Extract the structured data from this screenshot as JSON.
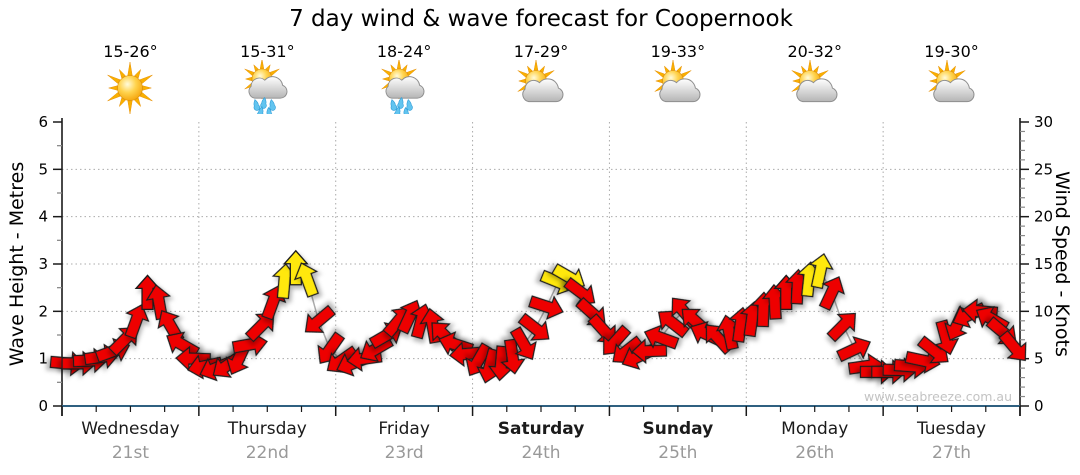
{
  "title": "7 day wind & wave forecast for Coopernook",
  "watermark": "www.seabreeze.com.au",
  "days": [
    {
      "name": "Wednesday",
      "date": "21st",
      "temp": "15-26°",
      "icon": "sun",
      "bold": false
    },
    {
      "name": "Thursday",
      "date": "22nd",
      "temp": "15-31°",
      "icon": "sun-cloud-rain",
      "bold": false
    },
    {
      "name": "Friday",
      "date": "23rd",
      "temp": "18-24°",
      "icon": "sun-cloud-rain",
      "bold": false
    },
    {
      "name": "Saturday",
      "date": "24th",
      "temp": "17-29°",
      "icon": "sun-cloud",
      "bold": true
    },
    {
      "name": "Sunday",
      "date": "25th",
      "temp": "19-33°",
      "icon": "sun-cloud",
      "bold": true
    },
    {
      "name": "Monday",
      "date": "26th",
      "temp": "20-32°",
      "icon": "sun-cloud",
      "bold": false
    },
    {
      "name": "Tuesday",
      "date": "27th",
      "temp": "19-30°",
      "icon": "sun-cloud",
      "bold": false
    }
  ],
  "chart_data": {
    "type": "wind-arrow-series",
    "title": "7 day wind & wave forecast for Coopernook",
    "left_axis": {
      "label": "Wave Height - Metres",
      "min": 0,
      "max": 6,
      "major_ticks": [
        0,
        1,
        2,
        3,
        4,
        5,
        6
      ],
      "minor_step": 0.5
    },
    "right_axis": {
      "label": "Wind Speed - Knots",
      "min": 0,
      "max": 30,
      "major_ticks": [
        0,
        5,
        10,
        15,
        20,
        25,
        30
      ],
      "minor_step": 1
    },
    "x_axis": {
      "days": 7,
      "minor_tick_hours": [
        6,
        12,
        18
      ],
      "grid_at_day_boundaries": true
    },
    "point_hours": [
      1,
      3,
      5,
      7,
      9,
      11,
      13,
      15,
      17,
      19,
      21,
      23
    ],
    "series": [
      {
        "day": "Wednesday",
        "speeds_knots": [
          4.5,
          4.5,
          4.8,
          5.2,
          5.8,
          7.0,
          9.0,
          12.0,
          11.0,
          8.5,
          6.5,
          5.0
        ],
        "arrow_bearing_deg": [
          95,
          90,
          88,
          82,
          70,
          45,
          20,
          0,
          350,
          330,
          300,
          272
        ]
      },
      {
        "day": "Thursday",
        "speeds_knots": [
          4.2,
          4.0,
          4.3,
          5.0,
          6.5,
          8.5,
          11.0,
          13.2,
          14.6,
          13.4,
          9.0,
          6.0
        ],
        "arrow_bearing_deg": [
          258,
          248,
          235,
          205,
          80,
          45,
          20,
          5,
          0,
          340,
          230,
          215
        ]
      },
      {
        "day": "Friday",
        "speeds_knots": [
          4.8,
          4.5,
          5.0,
          6.0,
          7.5,
          9.0,
          9.5,
          9.0,
          8.5,
          7.5,
          6.5,
          5.5
        ],
        "arrow_bearing_deg": [
          235,
          248,
          262,
          240,
          60,
          40,
          25,
          15,
          350,
          315,
          288,
          265
        ]
      },
      {
        "day": "Saturday",
        "speeds_knots": [
          4.8,
          4.2,
          4.5,
          5.2,
          6.5,
          8.2,
          10.5,
          13.1,
          13.6,
          12.0,
          9.8,
          8.0
        ],
        "arrow_bearing_deg": [
          210,
          195,
          185,
          172,
          150,
          128,
          108,
          112,
          120,
          127,
          132,
          138
        ]
      },
      {
        "day": "Sunday",
        "speeds_knots": [
          6.8,
          5.8,
          5.2,
          5.8,
          7.2,
          8.8,
          10.0,
          9.0,
          7.6,
          7.2,
          7.8,
          8.6
        ],
        "arrow_bearing_deg": [
          222,
          232,
          245,
          268,
          290,
          308,
          320,
          312,
          295,
          318,
          348,
          8
        ]
      },
      {
        "day": "Monday",
        "speeds_knots": [
          9.2,
          10.2,
          11.0,
          12.0,
          12.6,
          13.4,
          14.3,
          12.0,
          8.5,
          6.0,
          4.2,
          3.6
        ],
        "arrow_bearing_deg": [
          8,
          2,
          357,
          0,
          3,
          6,
          12,
          25,
          45,
          65,
          82,
          90
        ]
      },
      {
        "day": "Tuesday",
        "speeds_knots": [
          3.6,
          3.8,
          4.2,
          4.8,
          5.8,
          7.2,
          8.6,
          9.6,
          10.0,
          9.2,
          7.8,
          6.2
        ],
        "arrow_bearing_deg": [
          90,
          91,
          94,
          102,
          128,
          165,
          205,
          245,
          275,
          300,
          130,
          140
        ]
      }
    ],
    "strong_wind_threshold_knots": 13,
    "colors": {
      "arrow_normal": "#EE0000",
      "arrow_strong": "#FFE80A",
      "arrow_outline": "#1c1c1c",
      "wind_line": "#ABABAB",
      "grid": "#ABABAB",
      "axis_black": "#1a1a1a",
      "axis_bottom_blue": "#2F6080",
      "minor_tick": "#8a8a8a"
    },
    "legend": "none"
  }
}
